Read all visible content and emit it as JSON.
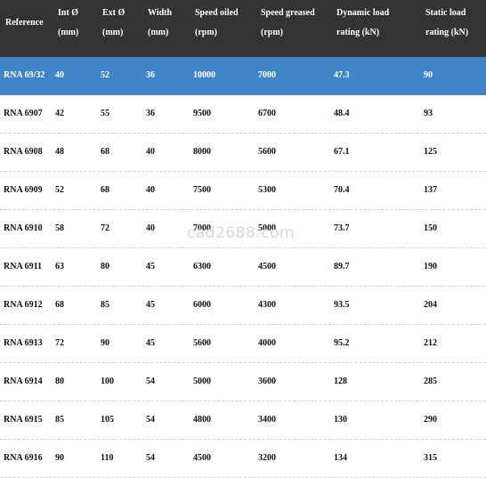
{
  "headers": {
    "reference": "Reference",
    "int_d": "Int Ø",
    "int_d_unit": "(mm)",
    "ext_d": "Ext Ø",
    "ext_d_unit": "(mm)",
    "width": "Width",
    "width_unit": "(mm)",
    "speed_oiled": "Speed oiled",
    "speed_oiled_unit": "(rpm)",
    "speed_greased": "Speed greased",
    "speed_greased_unit": "(rpm)",
    "dynamic_load": "Dynamic load",
    "dynamic_load_unit": "rating (kN)",
    "static_load": "Static load",
    "static_load_unit": "rating (kN)"
  },
  "rows": [
    {
      "ref": "RNA 69/32",
      "int_d": "40",
      "ext_d": "52",
      "width": "36",
      "speed_oiled": "10000",
      "speed_greased": "7000",
      "dynamic": "47.3",
      "static": "90"
    },
    {
      "ref": "RNA 6907",
      "int_d": "42",
      "ext_d": "55",
      "width": "36",
      "speed_oiled": "9500",
      "speed_greased": "6700",
      "dynamic": "48.4",
      "static": "93"
    },
    {
      "ref": "RNA 6908",
      "int_d": "48",
      "ext_d": "68",
      "width": "40",
      "speed_oiled": "8000",
      "speed_greased": "5600",
      "dynamic": "67.1",
      "static": "125"
    },
    {
      "ref": "RNA 6909",
      "int_d": "52",
      "ext_d": "68",
      "width": "40",
      "speed_oiled": "7500",
      "speed_greased": "5300",
      "dynamic": "70.4",
      "static": "137"
    },
    {
      "ref": "RNA 6910",
      "int_d": "58",
      "ext_d": "72",
      "width": "40",
      "speed_oiled": "7000",
      "speed_greased": "5000",
      "dynamic": "73.7",
      "static": "150"
    },
    {
      "ref": "RNA 6911",
      "int_d": "63",
      "ext_d": "80",
      "width": "45",
      "speed_oiled": "6300",
      "speed_greased": "4500",
      "dynamic": "89.7",
      "static": "190"
    },
    {
      "ref": "RNA 6912",
      "int_d": "68",
      "ext_d": "85",
      "width": "45",
      "speed_oiled": "6000",
      "speed_greased": "4300",
      "dynamic": "93.5",
      "static": "204"
    },
    {
      "ref": "RNA 6913",
      "int_d": "72",
      "ext_d": "90",
      "width": "45",
      "speed_oiled": "5600",
      "speed_greased": "4000",
      "dynamic": "95.2",
      "static": "212"
    },
    {
      "ref": "RNA 6914",
      "int_d": "80",
      "ext_d": "100",
      "width": "54",
      "speed_oiled": "5000",
      "speed_greased": "3600",
      "dynamic": "128",
      "static": "285"
    },
    {
      "ref": "RNA 6915",
      "int_d": "85",
      "ext_d": "105",
      "width": "54",
      "speed_oiled": "4800",
      "speed_greased": "3400",
      "dynamic": "130",
      "static": "290"
    },
    {
      "ref": "RNA 6916",
      "int_d": "90",
      "ext_d": "110",
      "width": "54",
      "speed_oiled": "4500",
      "speed_greased": "3200",
      "dynamic": "134",
      "static": "315"
    }
  ],
  "watermark": "cad2688.com",
  "colors": {
    "header_bg": "#333333",
    "selected_row_bg": "#3f86c8"
  }
}
